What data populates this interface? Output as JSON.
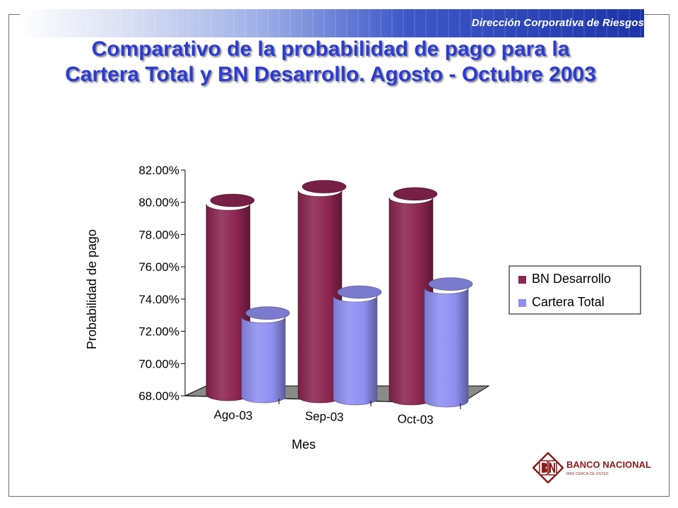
{
  "header": {
    "text": "Dirección Corporativa de Riesgos"
  },
  "title": {
    "line1": "Comparativo de la probabilidad de pago para la",
    "line2": "Cartera Total y BN Desarrollo. Agosto - Octubre 2003"
  },
  "logo": {
    "name": "BANCO NACIONAL",
    "tagline": "MAS CERCA DE USTED"
  },
  "colors": {
    "title": "#2b3bd6",
    "series_bn": "#8c2550",
    "series_cartera": "#8f8ff2",
    "logo": "#8b1a1a"
  },
  "chart_data": {
    "type": "bar",
    "style": "3d-cylinder",
    "title": "",
    "xlabel": "Mes",
    "ylabel": "Probabilidad de pago",
    "categories": [
      "Ago-03",
      "Sep-03",
      "Oct-03"
    ],
    "series": [
      {
        "name": "BN Desarrollo",
        "values": [
          0.799,
          0.8075,
          0.803
        ]
      },
      {
        "name": "Cartera Total",
        "values": [
          0.73,
          0.743,
          0.748
        ]
      }
    ],
    "ylim": [
      0.68,
      0.82
    ],
    "yticks": [
      "68.00%",
      "70.00%",
      "72.00%",
      "74.00%",
      "76.00%",
      "78.00%",
      "80.00%",
      "82.00%"
    ],
    "grid": false,
    "legend": "right"
  }
}
